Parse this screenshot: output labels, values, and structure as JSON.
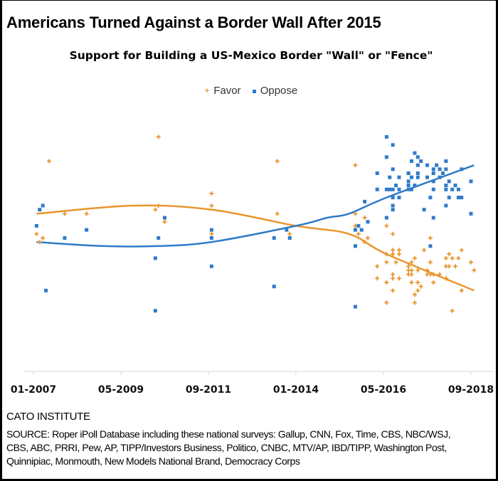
{
  "title": "Americans Turned Against a Border Wall After 2015",
  "org": "CATO INSTITUTE",
  "source_lines": [
    "SOURCE: Roper iPoll Database including these national surveys: Gallup, CNN, Fox, Time, CBS, NBC/WSJ,",
    "CBS, ABC, PRRI, Pew, AP, TIPP/Investors Business, Politico, CNBC, MTV/AP, IBD/TIPP, Washington Post,",
    "Quinnipiac, Monmouth, New Models National Brand, Democracy Corps"
  ],
  "chart_data": {
    "type": "scatter",
    "title": "Support for Building a US-Mexico Border \"Wall\" or \"Fence\"",
    "xlabel": "",
    "ylabel": "",
    "x_ticks": [
      "01-2007",
      "05-2009",
      "09-2011",
      "01-2014",
      "05-2016",
      "09-2018"
    ],
    "xlim": [
      "2007-01",
      "2018-09"
    ],
    "y_axis_shown": false,
    "grid": false,
    "legend": "top",
    "series": [
      {
        "name": "Favor",
        "color": "#E8962E",
        "marker": "plus",
        "points": [
          [
            "2007-06",
            72
          ],
          [
            "2010-05",
            78
          ],
          [
            "2013-07",
            72
          ],
          [
            "2011-10",
            64
          ],
          [
            "2010-05",
            61
          ],
          [
            "2010-04",
            60
          ],
          [
            "2011-10",
            61
          ],
          [
            "2007-11",
            59
          ],
          [
            "2008-06",
            59
          ],
          [
            "2013-07",
            59
          ],
          [
            "2010-07",
            57
          ],
          [
            "2007-02",
            54
          ],
          [
            "2007-04",
            53
          ],
          [
            "2007-03",
            52
          ],
          [
            "2011-10",
            54
          ],
          [
            "2013-11",
            54
          ],
          [
            "2015-08",
            71
          ],
          [
            "2015-08",
            59
          ],
          [
            "2015-11",
            58
          ],
          [
            "2015-08",
            56
          ],
          [
            "2016-06",
            56
          ],
          [
            "2015-09",
            54
          ],
          [
            "2016-08",
            54
          ],
          [
            "2015-12",
            53
          ],
          [
            "2015-11",
            52
          ],
          [
            "2017-08",
            53
          ],
          [
            "2016-08",
            50
          ],
          [
            "2016-10",
            50
          ],
          [
            "2017-06",
            50
          ],
          [
            "2018-06",
            50
          ],
          [
            "2018-02",
            49
          ],
          [
            "2016-06",
            49
          ],
          [
            "2016-08",
            49
          ],
          [
            "2016-10",
            49
          ],
          [
            "2018-01",
            48
          ],
          [
            "2018-03",
            48
          ],
          [
            "2018-05",
            48
          ],
          [
            "2017-03",
            48
          ],
          [
            "2016-06",
            47
          ],
          [
            "2016-09",
            47
          ],
          [
            "2017-02",
            47
          ],
          [
            "2017-08",
            47
          ],
          [
            "2018-09",
            47
          ],
          [
            "2016-03",
            46
          ],
          [
            "2017-01",
            46
          ],
          [
            "2018-02",
            46
          ],
          [
            "2018-04",
            46
          ],
          [
            "2018-10",
            45
          ],
          [
            "2017-01",
            45
          ],
          [
            "2017-02",
            45
          ],
          [
            "2017-04",
            45
          ],
          [
            "2017-07",
            45
          ],
          [
            "2018-01",
            46
          ],
          [
            "2016-08",
            44
          ],
          [
            "2017-08",
            44
          ],
          [
            "2017-09",
            44
          ],
          [
            "2017-11",
            44
          ],
          [
            "2017-01",
            44
          ],
          [
            "2017-02",
            44
          ],
          [
            "2017-07",
            44
          ],
          [
            "2017-09",
            44
          ],
          [
            "2018-01",
            43
          ],
          [
            "2016-03",
            43
          ],
          [
            "2016-08",
            43
          ],
          [
            "2016-10",
            43
          ],
          [
            "2018-01",
            43
          ],
          [
            "2016-06",
            42
          ],
          [
            "2017-02",
            42
          ],
          [
            "2017-04",
            42
          ],
          [
            "2017-09",
            42
          ],
          [
            "2017-05",
            41
          ],
          [
            "2016-08",
            40
          ],
          [
            "2017-04",
            40
          ],
          [
            "2018-06",
            40
          ],
          [
            "2017-03",
            39
          ],
          [
            "2016-06",
            37
          ],
          [
            "2017-03",
            37
          ],
          [
            "2018-03",
            35
          ]
        ],
        "trend": [
          [
            "2007-02",
            59
          ],
          [
            "2009-09",
            61
          ],
          [
            "2011-10",
            60
          ],
          [
            "2014-01",
            56
          ],
          [
            "2015-06",
            54
          ],
          [
            "2016-06",
            49
          ],
          [
            "2018-10",
            40
          ]
        ]
      },
      {
        "name": "Oppose",
        "color": "#2E7BC9",
        "marker": "square",
        "points": [
          [
            "2007-04",
            61
          ],
          [
            "2007-03",
            60
          ],
          [
            "2007-02",
            56
          ],
          [
            "2007-11",
            53
          ],
          [
            "2008-06",
            55
          ],
          [
            "2010-07",
            58
          ],
          [
            "2010-05",
            53
          ],
          [
            "2010-04",
            48
          ],
          [
            "2007-05",
            40
          ],
          [
            "2010-04",
            35
          ],
          [
            "2011-10",
            55
          ],
          [
            "2011-10",
            53
          ],
          [
            "2011-10",
            46
          ],
          [
            "2013-06",
            53
          ],
          [
            "2013-11",
            53
          ],
          [
            "2013-10",
            55
          ],
          [
            "2013-06",
            41
          ],
          [
            "2016-06",
            78
          ],
          [
            "2016-08",
            76
          ],
          [
            "2016-06",
            73
          ],
          [
            "2017-03",
            74
          ],
          [
            "2017-04",
            73
          ],
          [
            "2017-02",
            72
          ],
          [
            "2017-04",
            71
          ],
          [
            "2017-05",
            72
          ],
          [
            "2017-07",
            71
          ],
          [
            "2017-10",
            71
          ],
          [
            "2018-01",
            72
          ],
          [
            "2016-08",
            70
          ],
          [
            "2016-03",
            69
          ],
          [
            "2016-07",
            68
          ],
          [
            "2016-10",
            68
          ],
          [
            "2017-01",
            69
          ],
          [
            "2017-01",
            69
          ],
          [
            "2017-04",
            69
          ],
          [
            "2017-04",
            68
          ],
          [
            "2017-02",
            68
          ],
          [
            "2017-07",
            68
          ],
          [
            "2017-09",
            70
          ],
          [
            "2017-09",
            69
          ],
          [
            "2017-11",
            70
          ],
          [
            "2018-01",
            70
          ],
          [
            "2017-12",
            69
          ],
          [
            "2018-06",
            70
          ],
          [
            "2018-09",
            67
          ],
          [
            "2016-09",
            66
          ],
          [
            "2017-01",
            67
          ],
          [
            "2017-01",
            66
          ],
          [
            "2017-03",
            66
          ],
          [
            "2017-09",
            67
          ],
          [
            "2017-11",
            68
          ],
          [
            "2018-01",
            66
          ],
          [
            "2018-02",
            67
          ],
          [
            "2018-04",
            66
          ],
          [
            "2016-03",
            65
          ],
          [
            "2016-06",
            65
          ],
          [
            "2016-07",
            65
          ],
          [
            "2016-08",
            65
          ],
          [
            "2016-10",
            65
          ],
          [
            "2017-02",
            65
          ],
          [
            "2017-01",
            65
          ],
          [
            "2018-05",
            65
          ],
          [
            "2018-01",
            65
          ],
          [
            "2018-03",
            65
          ],
          [
            "2017-09",
            65
          ],
          [
            "2017-08",
            63
          ],
          [
            "2018-05",
            63
          ],
          [
            "2016-08",
            63
          ],
          [
            "2016-10",
            63
          ],
          [
            "2018-02",
            63
          ],
          [
            "2018-06",
            63
          ],
          [
            "2015-11",
            62
          ],
          [
            "2016-08",
            61
          ],
          [
            "2018-01",
            61
          ],
          [
            "2016-08",
            60
          ],
          [
            "2017-06",
            60
          ],
          [
            "2016-06",
            58
          ],
          [
            "2017-09",
            58
          ],
          [
            "2018-09",
            59
          ],
          [
            "2015-12",
            57
          ],
          [
            "2015-09",
            56
          ],
          [
            "2015-08",
            55
          ],
          [
            "2015-10",
            55
          ],
          [
            "2015-08",
            51
          ],
          [
            "2017-08",
            51
          ],
          [
            "2015-08",
            36
          ]
        ],
        "trend": [
          [
            "2007-02",
            52
          ],
          [
            "2008-11",
            51
          ],
          [
            "2010-05",
            51
          ],
          [
            "2011-10",
            52
          ],
          [
            "2014-01",
            56
          ],
          [
            "2014-11",
            58
          ],
          [
            "2015-06",
            59
          ],
          [
            "2016-06",
            63
          ],
          [
            "2018-10",
            71
          ]
        ]
      }
    ]
  }
}
